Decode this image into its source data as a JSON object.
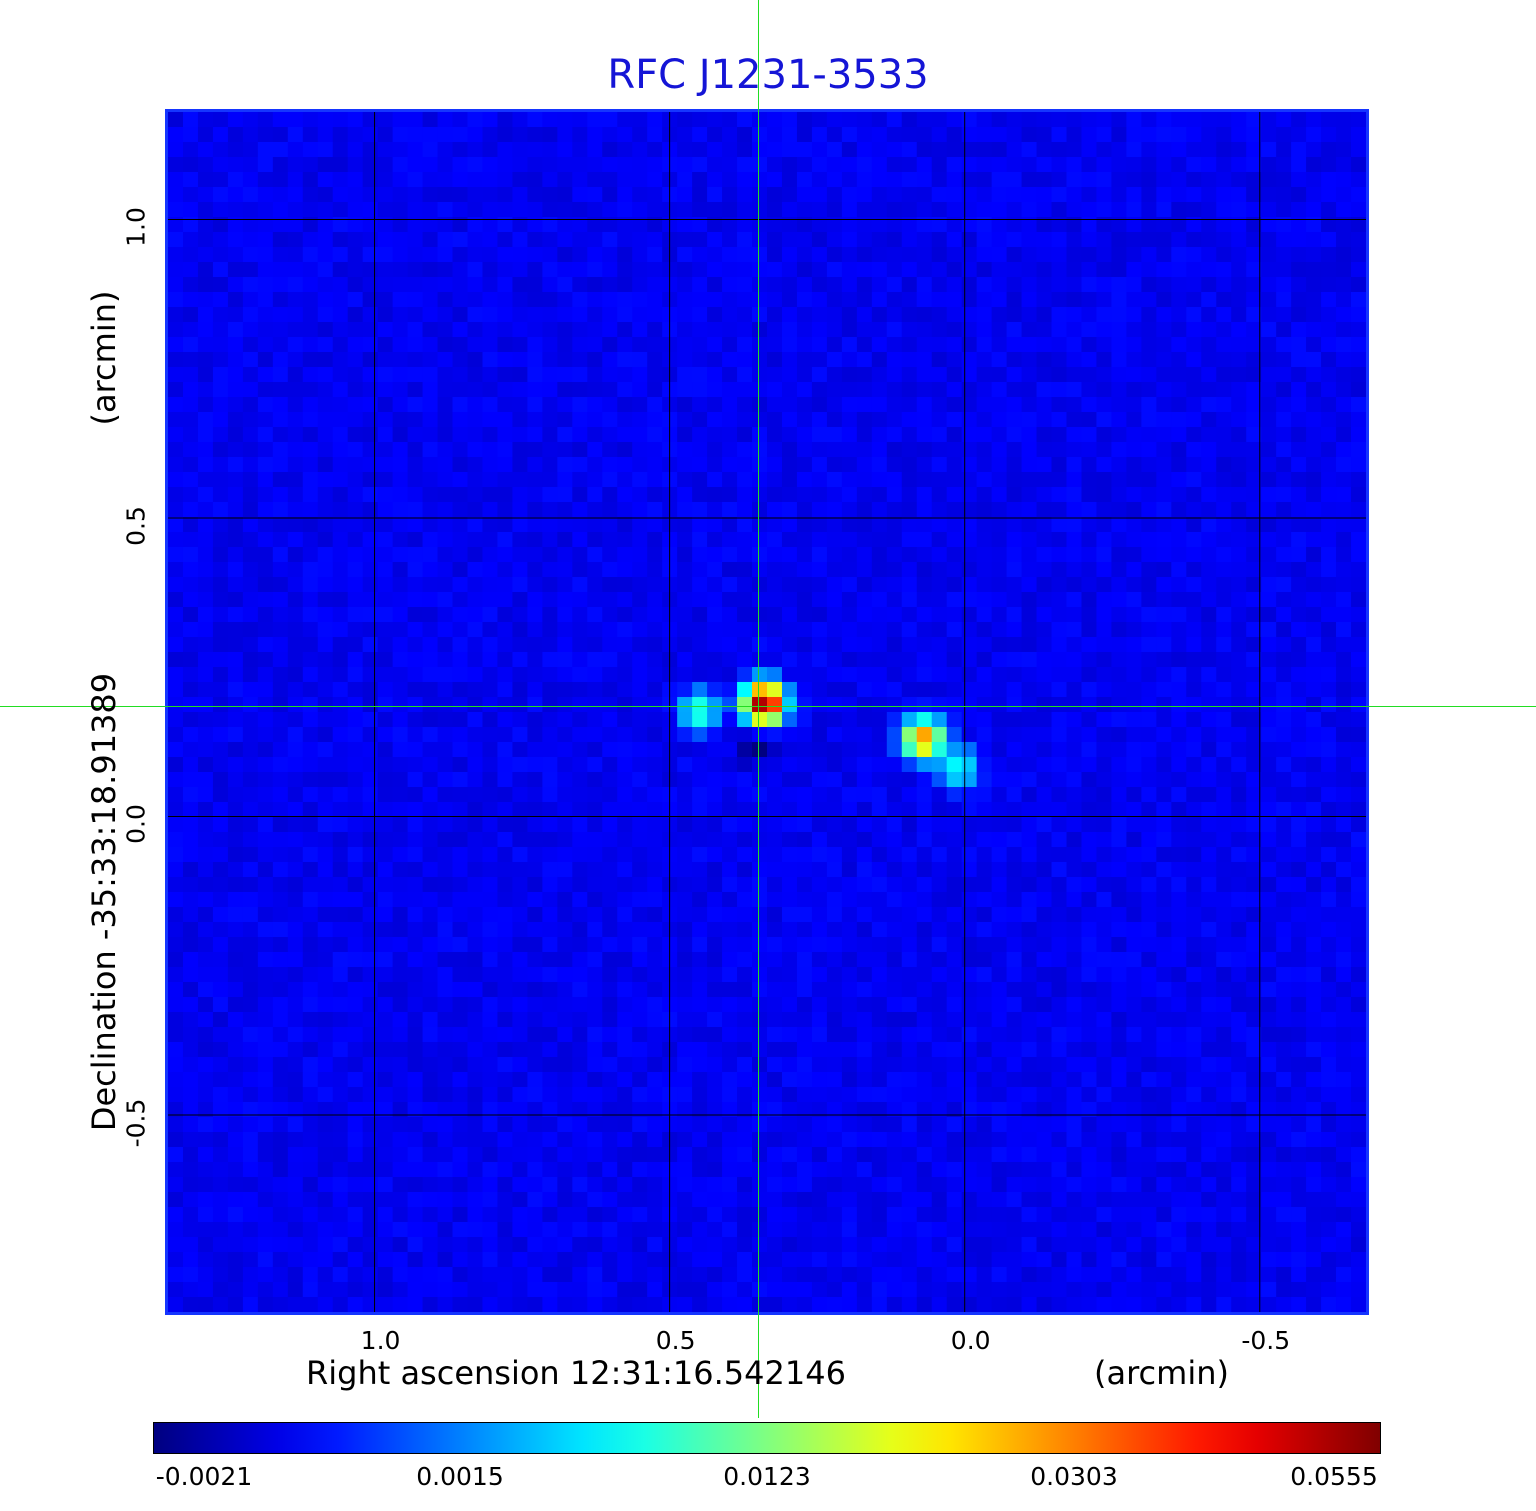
{
  "title": "RFC J1231-3533",
  "colors": {
    "title": "#1515d6",
    "frame": "#1535ff",
    "background_map": "#1a62f5",
    "crosshair": "#22dd22",
    "grid": "#000000"
  },
  "chart_data": {
    "type": "heatmap",
    "title": "RFC J1231-3533",
    "xlabel": "Right ascension  12:31:16.542146",
    "xunit": "(arcmin)",
    "ylabel": "Declination  -35:33:18.91389",
    "yunit": "(arcmin)",
    "xlim": [
      1.35,
      -0.68
    ],
    "ylim": [
      -0.83,
      1.18
    ],
    "x_ticks": [
      {
        "value": 1.0,
        "label": "1.0"
      },
      {
        "value": 0.5,
        "label": "0.5"
      },
      {
        "value": 0.0,
        "label": "0.0"
      },
      {
        "value": -0.5,
        "label": "-0.5"
      }
    ],
    "y_ticks": [
      {
        "value": 1.0,
        "label": "1.0"
      },
      {
        "value": 0.5,
        "label": "0.5"
      },
      {
        "value": 0.0,
        "label": "0.0"
      },
      {
        "value": -0.5,
        "label": "-0.5"
      }
    ],
    "grid": true,
    "crosshair": {
      "x": 0.35,
      "y": 0.185
    },
    "colorbar": {
      "ticks": [
        "-0.0021",
        "0.0015",
        "0.0123",
        "0.0303",
        "0.0555"
      ],
      "colormap": "jet"
    },
    "components": [
      {
        "x": 0.34,
        "y": 0.19,
        "peak": 0.0555
      },
      {
        "x": 0.45,
        "y": 0.175,
        "peak": 0.01
      },
      {
        "x": 0.35,
        "y": 0.12,
        "peak": -0.0021
      },
      {
        "x": 0.07,
        "y": 0.13,
        "peak": 0.03
      },
      {
        "x": 0.01,
        "y": 0.08,
        "peak": 0.008
      }
    ]
  }
}
